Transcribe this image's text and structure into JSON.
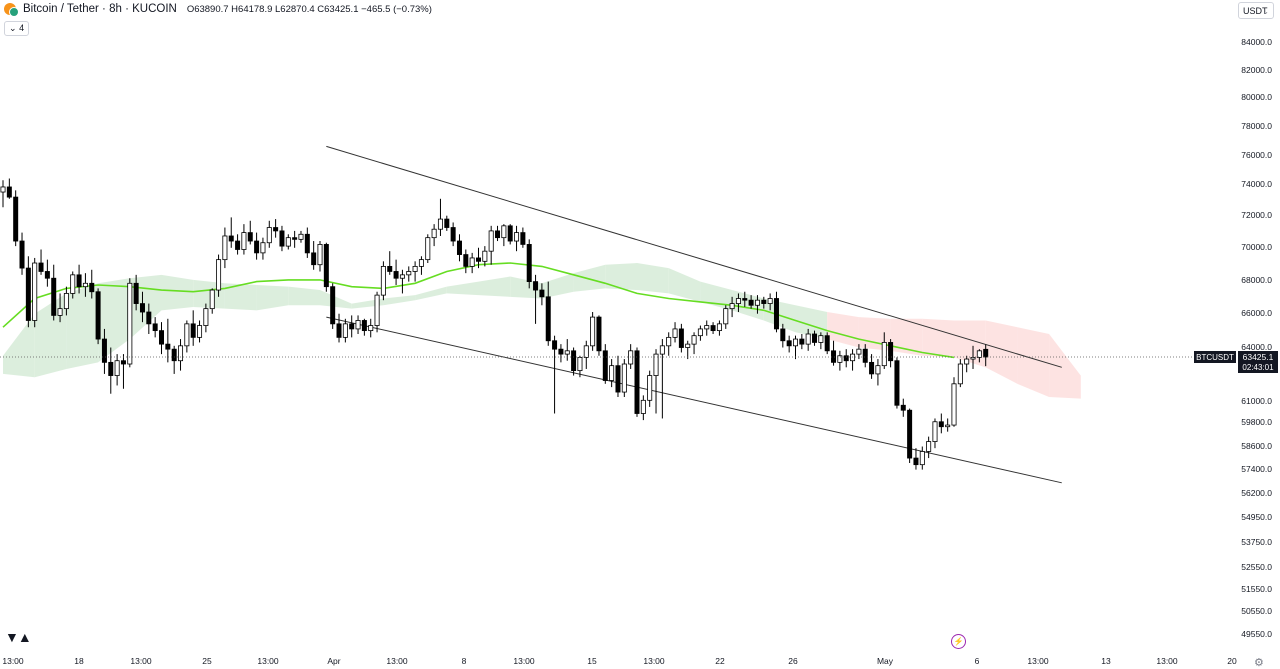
{
  "header": {
    "symbol": "Bitcoin / Tether · 8h · KUCOIN",
    "ohlc": "O63890.7 H64178.9 L62870.4 C63425.1 −465.5 (−0.73%)",
    "indicator_count": "4",
    "currency": "USDT"
  },
  "price_tag": {
    "symbol": "BTCUSDT",
    "price": "63425.1",
    "countdown": "02:43:01"
  },
  "colors": {
    "up_candle": "#ffffff",
    "down_candle": "#000000",
    "wick": "#000000",
    "ma_line": "#66dd22",
    "cloud_bull": "#d8ecd9",
    "cloud_bear": "#fde0df",
    "channel": "#333333"
  },
  "chart_data": {
    "type": "candlestick",
    "symbol": "BTCUSDT",
    "timeframe": "8h",
    "y_scale": "log",
    "y_ticks": [
      84000.0,
      82000.0,
      80000.0,
      78000.0,
      76000.0,
      74000.0,
      72000.0,
      70000.0,
      68000.0,
      66000.0,
      64000.0,
      61000.0,
      59800.0,
      58600.0,
      57400.0,
      56200.0,
      54950.0,
      53750.0,
      52550.0,
      51550.0,
      50550.0,
      49550.0
    ],
    "x_ticks": [
      {
        "label": "13:00",
        "pos": 0
      },
      {
        "label": "18",
        "pos": 1
      },
      {
        "label": "13:00",
        "pos": 2
      },
      {
        "label": "25",
        "pos": 3
      },
      {
        "label": "13:00",
        "pos": 4
      },
      {
        "label": "Apr",
        "pos": 5
      },
      {
        "label": "13:00",
        "pos": 6
      },
      {
        "label": "8",
        "pos": 7
      },
      {
        "label": "13:00",
        "pos": 8
      },
      {
        "label": "15",
        "pos": 9
      },
      {
        "label": "13:00",
        "pos": 10
      },
      {
        "label": "22",
        "pos": 11
      },
      {
        "label": "26",
        "pos": 12
      },
      {
        "label": "May",
        "pos": 13
      },
      {
        "label": "6",
        "pos": 14
      },
      {
        "label": "13:00",
        "pos": 15
      },
      {
        "label": "13",
        "pos": 16
      },
      {
        "label": "13:00",
        "pos": 17
      },
      {
        "label": "20",
        "pos": 18
      }
    ],
    "ohlc": [
      [
        73200,
        73900,
        72300,
        73500
      ],
      [
        73500,
        74000,
        72800,
        72900
      ],
      [
        72900,
        73300,
        70000,
        70300
      ],
      [
        70300,
        70800,
        68300,
        68700
      ],
      [
        68700,
        69400,
        65200,
        65600
      ],
      [
        65600,
        69300,
        65200,
        69000
      ],
      [
        69000,
        69800,
        68300,
        68500
      ],
      [
        68500,
        69200,
        67600,
        68100
      ],
      [
        68100,
        68900,
        65600,
        65900
      ],
      [
        65900,
        67200,
        65500,
        66300
      ],
      [
        66300,
        67600,
        65900,
        67200
      ],
      [
        67200,
        68500,
        66900,
        68300
      ],
      [
        68300,
        68900,
        67200,
        67600
      ],
      [
        67600,
        68400,
        67000,
        67800
      ],
      [
        67800,
        68600,
        66900,
        67300
      ],
      [
        67300,
        67500,
        64200,
        64500
      ],
      [
        64500,
        65100,
        62400,
        63100
      ],
      [
        63100,
        64000,
        61200,
        62300
      ],
      [
        62300,
        63600,
        61700,
        63200
      ],
      [
        63200,
        63600,
        61500,
        63000
      ],
      [
        63000,
        68100,
        62800,
        67800
      ],
      [
        67800,
        68300,
        66200,
        66600
      ],
      [
        66600,
        67300,
        65500,
        66100
      ],
      [
        66100,
        66600,
        64800,
        65400
      ],
      [
        65400,
        65800,
        64600,
        65000
      ],
      [
        65000,
        65500,
        63600,
        64200
      ],
      [
        64200,
        65700,
        63100,
        63900
      ],
      [
        63900,
        64100,
        62400,
        63200
      ],
      [
        63200,
        64500,
        62600,
        64100
      ],
      [
        64100,
        65600,
        63700,
        65400
      ],
      [
        65400,
        66200,
        64100,
        64600
      ],
      [
        64600,
        65600,
        64300,
        65300
      ],
      [
        65300,
        66600,
        64900,
        66300
      ],
      [
        66300,
        67500,
        66000,
        67400
      ],
      [
        67400,
        69500,
        67000,
        69200
      ],
      [
        69200,
        71100,
        68700,
        70600
      ],
      [
        70600,
        71700,
        69900,
        70300
      ],
      [
        70300,
        70700,
        69500,
        69800
      ],
      [
        69800,
        71300,
        69500,
        70800
      ],
      [
        70800,
        71500,
        70100,
        70300
      ],
      [
        70300,
        70800,
        69200,
        69600
      ],
      [
        69600,
        70500,
        69200,
        70200
      ],
      [
        70200,
        71500,
        69900,
        71100
      ],
      [
        71100,
        71600,
        70500,
        70900
      ],
      [
        70900,
        71200,
        69700,
        70000
      ],
      [
        70000,
        70700,
        69800,
        70500
      ],
      [
        70500,
        70900,
        69900,
        70400
      ],
      [
        70400,
        70900,
        70200,
        70700
      ],
      [
        70700,
        71100,
        69300,
        69600
      ],
      [
        69600,
        70300,
        68600,
        68900
      ],
      [
        68900,
        70300,
        68500,
        70100
      ],
      [
        70100,
        70200,
        67300,
        67600
      ],
      [
        67600,
        67800,
        65100,
        65400
      ],
      [
        65400,
        66000,
        64300,
        64600
      ],
      [
        64600,
        65700,
        64300,
        65400
      ],
      [
        65400,
        65900,
        64600,
        65100
      ],
      [
        65100,
        65900,
        64800,
        65600
      ],
      [
        65600,
        65700,
        64700,
        65000
      ],
      [
        65000,
        65700,
        64600,
        65300
      ],
      [
        65300,
        67300,
        64900,
        67100
      ],
      [
        67100,
        69100,
        66800,
        68800
      ],
      [
        68800,
        69700,
        68300,
        68500
      ],
      [
        68500,
        69200,
        67700,
        68100
      ],
      [
        68100,
        68600,
        67200,
        68300
      ],
      [
        68300,
        68800,
        67900,
        68500
      ],
      [
        68500,
        69100,
        67900,
        68800
      ],
      [
        68800,
        69400,
        68300,
        69200
      ],
      [
        69200,
        70700,
        69000,
        70500
      ],
      [
        70500,
        71300,
        70000,
        71000
      ],
      [
        71000,
        72800,
        70600,
        71600
      ],
      [
        71600,
        71800,
        70900,
        71100
      ],
      [
        71100,
        71400,
        70000,
        70300
      ],
      [
        70300,
        70700,
        69100,
        69500
      ],
      [
        69500,
        69800,
        68400,
        68800
      ],
      [
        68800,
        69600,
        68400,
        69300
      ],
      [
        69300,
        69900,
        68700,
        69100
      ],
      [
        69100,
        70000,
        68800,
        69700
      ],
      [
        69700,
        71200,
        68900,
        70900
      ],
      [
        70900,
        71200,
        70300,
        70500
      ],
      [
        70500,
        71300,
        70000,
        71200
      ],
      [
        71200,
        71300,
        70100,
        70300
      ],
      [
        70300,
        71200,
        69700,
        70800
      ],
      [
        70800,
        71100,
        69900,
        70100
      ],
      [
        70100,
        70400,
        67500,
        67900
      ],
      [
        67900,
        68300,
        65400,
        67400
      ],
      [
        67400,
        67800,
        66500,
        67000
      ],
      [
        67000,
        67900,
        64100,
        64400
      ],
      [
        64400,
        64700,
        60000,
        63900
      ],
      [
        63900,
        64200,
        63100,
        63600
      ],
      [
        63600,
        64500,
        63200,
        63800
      ],
      [
        63800,
        64000,
        62300,
        62600
      ],
      [
        62600,
        63500,
        62200,
        63400
      ],
      [
        63400,
        64400,
        62700,
        64100
      ],
      [
        64100,
        66100,
        63800,
        65800
      ],
      [
        65800,
        65900,
        63500,
        63800
      ],
      [
        63800,
        64200,
        61800,
        62000
      ],
      [
        62000,
        63300,
        61600,
        62900
      ],
      [
        62900,
        63500,
        61000,
        61300
      ],
      [
        61300,
        63300,
        61000,
        63000
      ],
      [
        63000,
        64200,
        62700,
        63800
      ],
      [
        63800,
        64000,
        59800,
        60000
      ],
      [
        60000,
        61100,
        59600,
        60800
      ],
      [
        60800,
        62600,
        60400,
        62300
      ],
      [
        62300,
        63900,
        60000,
        63600
      ],
      [
        63600,
        64500,
        59700,
        64100
      ],
      [
        64100,
        64900,
        63500,
        64600
      ],
      [
        64600,
        65500,
        64300,
        65100
      ],
      [
        65100,
        65400,
        63700,
        64000
      ],
      [
        64000,
        64400,
        63300,
        64200
      ],
      [
        64200,
        64900,
        63600,
        64700
      ],
      [
        64700,
        65300,
        64400,
        65100
      ],
      [
        65100,
        65600,
        64700,
        65300
      ],
      [
        65300,
        65500,
        64800,
        65000
      ],
      [
        65000,
        65600,
        64700,
        65400
      ],
      [
        65400,
        66500,
        65100,
        66300
      ],
      [
        66300,
        67000,
        65800,
        66600
      ],
      [
        66600,
        67200,
        66100,
        66900
      ],
      [
        66900,
        67300,
        66400,
        66800
      ],
      [
        66800,
        67100,
        66300,
        66500
      ],
      [
        66500,
        67100,
        66000,
        66800
      ],
      [
        66800,
        67000,
        66300,
        66600
      ],
      [
        66600,
        67200,
        66200,
        66900
      ],
      [
        66900,
        67300,
        64900,
        65100
      ],
      [
        65100,
        65400,
        64000,
        64400
      ],
      [
        64400,
        64700,
        63700,
        64100
      ],
      [
        64100,
        64700,
        63300,
        64500
      ],
      [
        64500,
        64800,
        63900,
        64200
      ],
      [
        64200,
        65100,
        63800,
        64800
      ],
      [
        64800,
        65000,
        64100,
        64300
      ],
      [
        64300,
        64900,
        63900,
        64700
      ],
      [
        64700,
        64900,
        63600,
        63800
      ],
      [
        63800,
        64400,
        62900,
        63100
      ],
      [
        63100,
        63800,
        62600,
        63500
      ],
      [
        63500,
        63900,
        62800,
        63200
      ],
      [
        63200,
        63900,
        62600,
        63600
      ],
      [
        63600,
        64200,
        63300,
        63900
      ],
      [
        63900,
        64200,
        62800,
        63100
      ],
      [
        63100,
        63600,
        62100,
        62400
      ],
      [
        62400,
        63300,
        61700,
        62900
      ],
      [
        62900,
        64900,
        62700,
        64300
      ],
      [
        64300,
        64500,
        62800,
        63200
      ],
      [
        63200,
        63400,
        60300,
        60500
      ],
      [
        60500,
        60900,
        59800,
        60200
      ],
      [
        60200,
        60300,
        57000,
        57300
      ],
      [
        57300,
        57900,
        56600,
        56900
      ],
      [
        56900,
        58000,
        56600,
        57700
      ],
      [
        57700,
        58600,
        57300,
        58300
      ],
      [
        58300,
        59700,
        57900,
        59500
      ],
      [
        59500,
        60000,
        58800,
        59200
      ],
      [
        59200,
        59700,
        58900,
        59300
      ],
      [
        59300,
        62200,
        59200,
        61800
      ],
      [
        61800,
        63300,
        61600,
        63000
      ],
      [
        63000,
        63500,
        62500,
        63300
      ],
      [
        63300,
        64100,
        62700,
        63400
      ],
      [
        63400,
        63900,
        63100,
        63800
      ],
      [
        63890.7,
        64178.9,
        62870.4,
        63425.1
      ]
    ],
    "ma_line": [
      [
        0,
        65200
      ],
      [
        5,
        66900
      ],
      [
        10,
        67500
      ],
      [
        15,
        67700
      ],
      [
        20,
        67600
      ],
      [
        25,
        67400
      ],
      [
        30,
        67300
      ],
      [
        35,
        67500
      ],
      [
        40,
        67900
      ],
      [
        45,
        68000
      ],
      [
        50,
        68000
      ],
      [
        55,
        67600
      ],
      [
        60,
        67500
      ],
      [
        65,
        67800
      ],
      [
        70,
        68500
      ],
      [
        75,
        68900
      ],
      [
        80,
        69000
      ],
      [
        85,
        68800
      ],
      [
        90,
        68300
      ],
      [
        95,
        67800
      ],
      [
        100,
        67200
      ],
      [
        105,
        66900
      ],
      [
        110,
        66700
      ],
      [
        115,
        66500
      ],
      [
        120,
        66200
      ],
      [
        125,
        65600
      ],
      [
        130,
        65000
      ],
      [
        135,
        64500
      ],
      [
        140,
        64100
      ],
      [
        145,
        63700
      ],
      [
        150,
        63400
      ]
    ],
    "cloud": [
      [
        0,
        62400,
        63500
      ],
      [
        5,
        62200,
        66000
      ],
      [
        10,
        62700,
        67200
      ],
      [
        15,
        63100,
        67800
      ],
      [
        20,
        64500,
        68100
      ],
      [
        25,
        66200,
        68300
      ],
      [
        30,
        66400,
        68000
      ],
      [
        35,
        66300,
        67800
      ],
      [
        40,
        66200,
        67700
      ],
      [
        45,
        66500,
        67600
      ],
      [
        50,
        66500,
        67400
      ],
      [
        55,
        66300,
        66600
      ],
      [
        60,
        66500,
        66900
      ],
      [
        65,
        66800,
        67100
      ],
      [
        70,
        67200,
        67600
      ],
      [
        75,
        67100,
        67900
      ],
      [
        80,
        67000,
        68200
      ],
      [
        85,
        66900,
        67800
      ],
      [
        90,
        67300,
        68400
      ],
      [
        95,
        67500,
        68900
      ],
      [
        100,
        67400,
        69000
      ],
      [
        105,
        67200,
        68700
      ],
      [
        110,
        66700,
        67900
      ],
      [
        115,
        66200,
        67400
      ],
      [
        120,
        65600,
        66900
      ],
      [
        125,
        64900,
        66500
      ],
      [
        130,
        64500,
        66100
      ],
      [
        135,
        64000,
        65800
      ],
      [
        140,
        63800,
        65700
      ],
      [
        145,
        63500,
        65700
      ],
      [
        150,
        63400,
        65600
      ],
      [
        155,
        62800,
        65600
      ],
      [
        160,
        61800,
        65200
      ],
      [
        165,
        61000,
        64800
      ],
      [
        170,
        60900,
        62300
      ]
    ],
    "trendlines": [
      {
        "from": [
          51,
          75900
        ],
        "to": [
          167,
          62800
        ]
      },
      {
        "from": [
          51,
          65800
        ],
        "to": [
          167,
          55800
        ]
      }
    ],
    "last_price": 63425.1
  }
}
